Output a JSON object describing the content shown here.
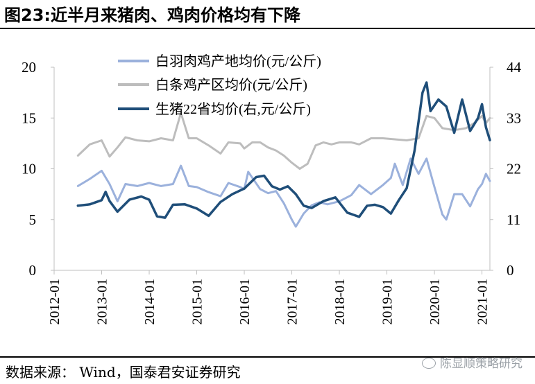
{
  "header": {
    "title": "图23:近半月来猪肉、鸡肉价格均有下降"
  },
  "footer": {
    "source": "数据来源： Wind，国泰君安证券研究",
    "watermark": "陈显顺策略研究"
  },
  "chart_data": {
    "type": "line",
    "title": "图23:近半月来猪肉、鸡肉价格均有下降",
    "xlabel": "",
    "ylabel_left": "",
    "ylabel_right": "",
    "x_ticks": [
      "2012-01",
      "2013-01",
      "2014-01",
      "2015-01",
      "2016-01",
      "2017-01",
      "2018-01",
      "2019-01",
      "2020-01",
      "2021-01"
    ],
    "x_range": [
      "2012-01",
      "2021-03"
    ],
    "y_left_range": [
      0,
      20
    ],
    "y_left_ticks": [
      "0",
      "5",
      "10",
      "15",
      "20"
    ],
    "y_right_range": [
      0,
      44
    ],
    "y_right_ticks": [
      "0",
      "11",
      "22",
      "33",
      "44"
    ],
    "grid": false,
    "legend_position": "top-left",
    "colors": {
      "white_broiler": "#9bb1dc",
      "white_stripped": "#bdbdbd",
      "hog": "#1f4e79"
    },
    "series": [
      {
        "name": "白羽肉鸡产地均价(元/公斤)",
        "axis": "left",
        "points": [
          [
            "2012-07",
            8.3
          ],
          [
            "2012-10",
            9.0
          ],
          [
            "2013-01",
            9.8
          ],
          [
            "2013-03",
            8.5
          ],
          [
            "2013-05",
            6.8
          ],
          [
            "2013-07",
            8.5
          ],
          [
            "2013-10",
            8.3
          ],
          [
            "2014-01",
            8.6
          ],
          [
            "2014-04",
            8.3
          ],
          [
            "2014-07",
            8.5
          ],
          [
            "2014-09",
            10.3
          ],
          [
            "2014-11",
            8.3
          ],
          [
            "2015-01",
            8.2
          ],
          [
            "2015-04",
            7.7
          ],
          [
            "2015-07",
            7.3
          ],
          [
            "2015-09",
            8.6
          ],
          [
            "2015-12",
            8.2
          ],
          [
            "2016-01",
            8.0
          ],
          [
            "2016-02",
            9.7
          ],
          [
            "2016-05",
            8.0
          ],
          [
            "2016-07",
            7.6
          ],
          [
            "2016-09",
            7.8
          ],
          [
            "2016-11",
            6.6
          ],
          [
            "2017-01",
            5.0
          ],
          [
            "2017-02",
            4.3
          ],
          [
            "2017-04",
            5.6
          ],
          [
            "2017-06",
            6.4
          ],
          [
            "2017-08",
            6.7
          ],
          [
            "2017-10",
            6.5
          ],
          [
            "2018-01",
            6.8
          ],
          [
            "2018-04",
            7.4
          ],
          [
            "2018-06",
            8.4
          ],
          [
            "2018-09",
            7.5
          ],
          [
            "2018-12",
            8.4
          ],
          [
            "2019-02",
            9.1
          ],
          [
            "2019-03",
            10.5
          ],
          [
            "2019-05",
            8.4
          ],
          [
            "2019-07",
            11.0
          ],
          [
            "2019-09",
            9.5
          ],
          [
            "2019-11",
            11.0
          ],
          [
            "2020-01",
            8.2
          ],
          [
            "2020-03",
            5.5
          ],
          [
            "2020-04",
            5.0
          ],
          [
            "2020-06",
            7.5
          ],
          [
            "2020-08",
            7.5
          ],
          [
            "2020-10",
            6.3
          ],
          [
            "2020-12",
            8.0
          ],
          [
            "2021-01",
            8.5
          ],
          [
            "2021-02",
            9.5
          ],
          [
            "2021-03",
            8.8
          ]
        ]
      },
      {
        "name": "白条鸡产区均价(元/公斤)",
        "axis": "left",
        "points": [
          [
            "2012-07",
            11.3
          ],
          [
            "2012-10",
            12.4
          ],
          [
            "2013-01",
            12.8
          ],
          [
            "2013-03",
            11.2
          ],
          [
            "2013-05",
            12.1
          ],
          [
            "2013-07",
            13.1
          ],
          [
            "2013-10",
            12.8
          ],
          [
            "2014-01",
            12.7
          ],
          [
            "2014-04",
            13.0
          ],
          [
            "2014-07",
            12.8
          ],
          [
            "2014-09",
            15.5
          ],
          [
            "2014-11",
            13.0
          ],
          [
            "2015-01",
            13.0
          ],
          [
            "2015-04",
            12.3
          ],
          [
            "2015-07",
            11.5
          ],
          [
            "2015-09",
            12.6
          ],
          [
            "2015-12",
            12.5
          ],
          [
            "2016-01",
            12.0
          ],
          [
            "2016-03",
            12.6
          ],
          [
            "2016-05",
            12.6
          ],
          [
            "2016-07",
            12.1
          ],
          [
            "2016-09",
            11.8
          ],
          [
            "2016-11",
            11.3
          ],
          [
            "2017-01",
            10.6
          ],
          [
            "2017-03",
            10.0
          ],
          [
            "2017-05",
            10.5
          ],
          [
            "2017-07",
            12.3
          ],
          [
            "2017-09",
            12.6
          ],
          [
            "2017-11",
            12.4
          ],
          [
            "2018-01",
            12.6
          ],
          [
            "2018-04",
            12.6
          ],
          [
            "2018-06",
            12.4
          ],
          [
            "2018-09",
            13.0
          ],
          [
            "2018-12",
            13.0
          ],
          [
            "2019-03",
            12.9
          ],
          [
            "2019-06",
            12.8
          ],
          [
            "2019-09",
            13.0
          ],
          [
            "2019-11",
            15.2
          ],
          [
            "2020-01",
            15.0
          ],
          [
            "2020-03",
            14.0
          ],
          [
            "2020-06",
            13.8
          ],
          [
            "2020-09",
            14.0
          ],
          [
            "2020-11",
            14.5
          ],
          [
            "2021-01",
            15.2
          ],
          [
            "2021-02",
            14.5
          ],
          [
            "2021-03",
            15.0
          ]
        ]
      },
      {
        "name": "生猪22省均价(右,元/公斤)",
        "axis": "right",
        "points": [
          [
            "2012-07",
            14.0
          ],
          [
            "2012-10",
            14.3
          ],
          [
            "2013-01",
            15.2
          ],
          [
            "2013-02",
            17.0
          ],
          [
            "2013-03",
            15.0
          ],
          [
            "2013-05",
            12.7
          ],
          [
            "2013-08",
            15.3
          ],
          [
            "2013-11",
            16.0
          ],
          [
            "2014-01",
            15.3
          ],
          [
            "2014-03",
            11.7
          ],
          [
            "2014-05",
            11.4
          ],
          [
            "2014-07",
            14.2
          ],
          [
            "2014-10",
            14.3
          ],
          [
            "2015-01",
            13.4
          ],
          [
            "2015-04",
            11.8
          ],
          [
            "2015-07",
            14.8
          ],
          [
            "2015-10",
            16.5
          ],
          [
            "2016-01",
            17.7
          ],
          [
            "2016-04",
            20.2
          ],
          [
            "2016-06",
            20.5
          ],
          [
            "2016-08",
            18.2
          ],
          [
            "2016-10",
            17.5
          ],
          [
            "2016-12",
            18.2
          ],
          [
            "2017-02",
            16.5
          ],
          [
            "2017-04",
            14.0
          ],
          [
            "2017-06",
            13.5
          ],
          [
            "2017-09",
            15.0
          ],
          [
            "2017-12",
            15.8
          ],
          [
            "2018-03",
            12.5
          ],
          [
            "2018-06",
            11.6
          ],
          [
            "2018-08",
            14.0
          ],
          [
            "2018-10",
            14.2
          ],
          [
            "2018-12",
            13.7
          ],
          [
            "2019-02",
            12.3
          ],
          [
            "2019-04",
            15.2
          ],
          [
            "2019-06",
            17.8
          ],
          [
            "2019-08",
            26.0
          ],
          [
            "2019-10",
            38.5
          ],
          [
            "2019-11",
            40.7
          ],
          [
            "2019-12",
            34.5
          ],
          [
            "2020-02",
            37.0
          ],
          [
            "2020-04",
            35.5
          ],
          [
            "2020-06",
            29.8
          ],
          [
            "2020-08",
            37.0
          ],
          [
            "2020-10",
            30.2
          ],
          [
            "2020-12",
            33.0
          ],
          [
            "2021-01",
            36.0
          ],
          [
            "2021-02",
            31.0
          ],
          [
            "2021-03",
            28.2
          ]
        ]
      }
    ]
  }
}
